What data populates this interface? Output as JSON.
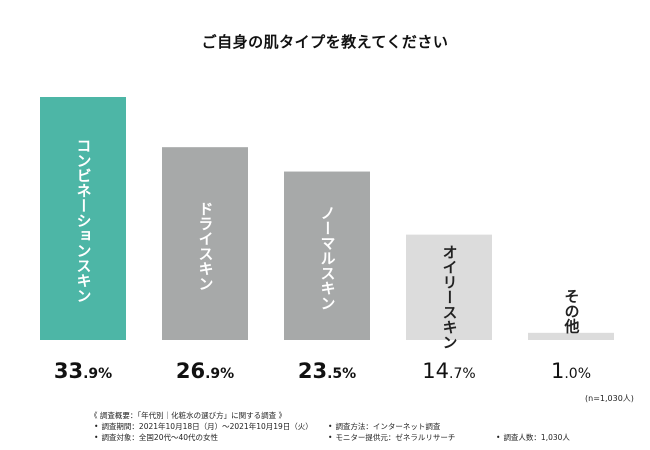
{
  "title": "ご自身の肌タイプを教えてください",
  "chart_data": {
    "type": "bar",
    "title": "ご自身の肌タイプを教えてください",
    "categories": [
      "コンビネーションスキン",
      "ドライスキン",
      "ノーマルスキン",
      "オイリースキン",
      "その他"
    ],
    "values": [
      33.9,
      26.9,
      23.5,
      14.7,
      1.0
    ],
    "value_labels": [
      {
        "num": "33",
        "dec": ".9%"
      },
      {
        "num": "26",
        "dec": ".9%"
      },
      {
        "num": "23",
        "dec": ".5%"
      },
      {
        "num": "14",
        "dec": ".7%"
      },
      {
        "num": "1",
        "dec": ".0%"
      }
    ],
    "ylim": [
      0,
      33.9
    ],
    "grid": false,
    "bar_colors": [
      "#4db6a6",
      "#a7a9a9",
      "#a7a9a9",
      "#dcdcdc",
      "#dcdcdc"
    ],
    "label_colors": [
      "#ffffff",
      "#ffffff",
      "#ffffff",
      "#222222",
      "#222222"
    ],
    "value_emphasis": [
      "bold",
      "bold",
      "bold",
      "normal",
      "normal"
    ]
  },
  "sample_note": "(n=1,030人)",
  "survey": {
    "header": "《 調査概要：「年代別｜化粧水の選び方」に関する調査 》",
    "bullet": "•",
    "period": "調査期間：2021年10月18日（月）〜2021年10月19日（火）",
    "target": "調査対象：全国20代〜40代の女性",
    "method": "調査方法：インターネット調査",
    "provider": "モニター提供元：ゼネラルリサーチ",
    "count": "調査人数：1,030人"
  }
}
